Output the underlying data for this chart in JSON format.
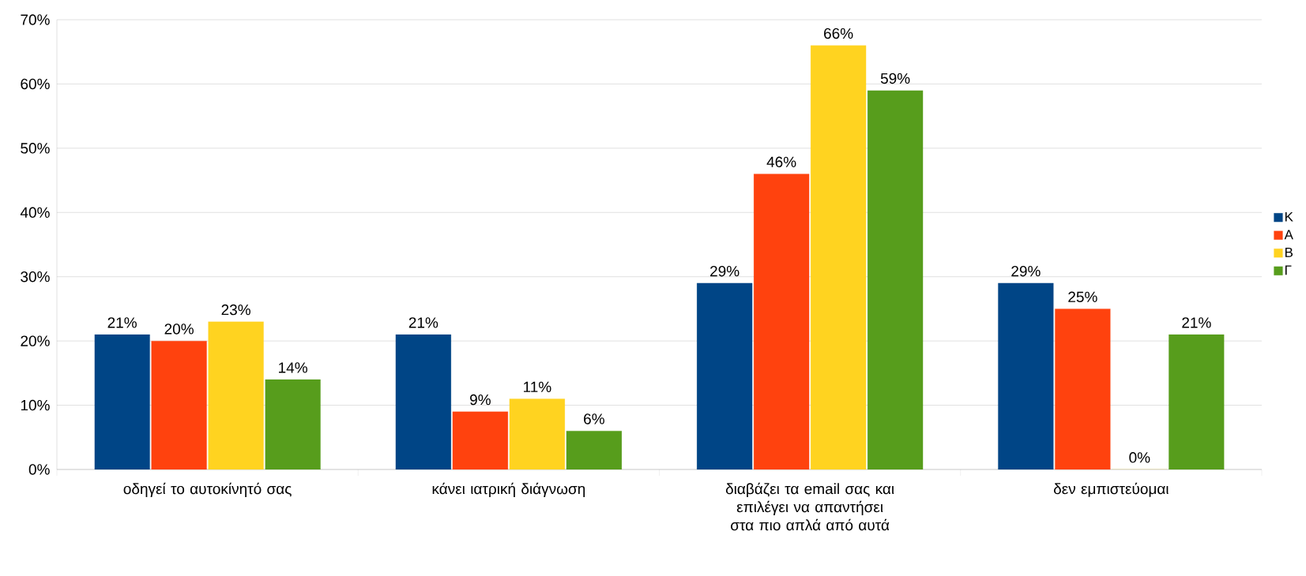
{
  "chart_data": {
    "type": "bar",
    "categories": [
      "οδηγεί το αυτοκίνητό σας",
      "κάνει ιατρική διάγνωση",
      "διαβάζει τα email σας και επιλέγει να απαντήσει στα πιο απλά από αυτά",
      "δεν εμπιστεύομαι"
    ],
    "series": [
      {
        "name": "Κ",
        "color": "#004586",
        "values": [
          21,
          21,
          29,
          29
        ],
        "value_labels": [
          "21%",
          "21%",
          "29%",
          "29%"
        ]
      },
      {
        "name": "Α",
        "color": "#ff420e",
        "values": [
          20,
          9,
          46,
          25
        ],
        "value_labels": [
          "20%",
          "9%",
          "46%",
          "25%"
        ]
      },
      {
        "name": "Β",
        "color": "#ffd320",
        "values": [
          23,
          11,
          66,
          0
        ],
        "value_labels": [
          "23%",
          "11%",
          "66%",
          "0%"
        ]
      },
      {
        "name": "Γ",
        "color": "#579d1c",
        "values": [
          14,
          6,
          59,
          21
        ],
        "value_labels": [
          "14%",
          "6%",
          "59%",
          "21%"
        ]
      }
    ],
    "ylim": [
      0,
      70
    ],
    "yticks": [
      {
        "value": 0,
        "label": "0%"
      },
      {
        "value": 10,
        "label": "10%"
      },
      {
        "value": 20,
        "label": "20%"
      },
      {
        "value": 30,
        "label": "30%"
      },
      {
        "value": 40,
        "label": "40%"
      },
      {
        "value": 50,
        "label": "50%"
      },
      {
        "value": 60,
        "label": "60%"
      },
      {
        "value": 70,
        "label": "70%"
      }
    ],
    "grid": "y",
    "legend": "right"
  }
}
